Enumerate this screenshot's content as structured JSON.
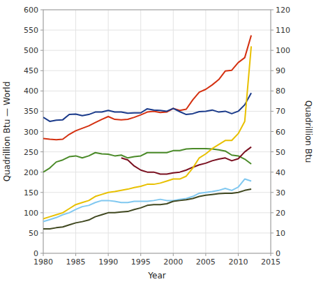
{
  "chart_data": {
    "type": "line",
    "xlabel": "Year",
    "ylabel": "Quadrillion Btu — World",
    "y2label": "Quadrillion Btu",
    "x": [
      1980,
      1981,
      1982,
      1983,
      1984,
      1985,
      1986,
      1987,
      1988,
      1989,
      1990,
      1991,
      1992,
      1993,
      1994,
      1995,
      1996,
      1997,
      1998,
      1999,
      2000,
      2001,
      2002,
      2003,
      2004,
      2005,
      2006,
      2007,
      2008,
      2009,
      2010,
      2011,
      2012
    ],
    "series": [
      {
        "color": "#d43010",
        "values": [
          283,
          281,
          280,
          281,
          293,
          302,
          308,
          314,
          322,
          330,
          337,
          330,
          329,
          330,
          335,
          341,
          348,
          350,
          347,
          348,
          357,
          352,
          355,
          378,
          397,
          404,
          415,
          428,
          449,
          451,
          470,
          482,
          537
        ]
      },
      {
        "color": "#1a3a8a",
        "values": [
          335,
          325,
          328,
          329,
          342,
          343,
          339,
          342,
          348,
          348,
          352,
          348,
          348,
          345,
          346,
          346,
          356,
          353,
          352,
          350,
          357,
          349,
          342,
          344,
          349,
          350,
          353,
          348,
          350,
          344,
          350,
          366,
          395
        ]
      },
      {
        "color": "#4a8a28",
        "values": [
          200,
          210,
          225,
          230,
          238,
          240,
          235,
          240,
          248,
          245,
          244,
          240,
          242,
          235,
          238,
          240,
          248,
          248,
          248,
          248,
          253,
          253,
          257,
          258,
          258,
          258,
          257,
          255,
          252,
          242,
          240,
          232,
          220
        ]
      },
      {
        "color": "#7a1020",
        "values": [
          null,
          null,
          null,
          null,
          null,
          null,
          null,
          null,
          null,
          null,
          null,
          null,
          235,
          230,
          215,
          205,
          200,
          200,
          195,
          195,
          198,
          200,
          205,
          212,
          218,
          222,
          228,
          232,
          235,
          228,
          233,
          250,
          262
        ]
      },
      {
        "color": "#e8c000",
        "values": [
          85,
          90,
          95,
          100,
          110,
          120,
          125,
          130,
          140,
          145,
          150,
          152,
          155,
          158,
          162,
          165,
          170,
          170,
          173,
          178,
          183,
          183,
          190,
          210,
          235,
          245,
          258,
          268,
          278,
          278,
          295,
          325,
          510
        ]
      },
      {
        "color": "#80c8f0",
        "values": [
          78,
          83,
          88,
          95,
          100,
          108,
          115,
          118,
          125,
          130,
          130,
          128,
          125,
          125,
          128,
          128,
          128,
          130,
          133,
          130,
          130,
          133,
          135,
          140,
          148,
          150,
          152,
          155,
          160,
          155,
          163,
          183,
          178
        ]
      },
      {
        "color": "#404820",
        "values": [
          60,
          60,
          63,
          65,
          70,
          75,
          78,
          82,
          90,
          95,
          100,
          100,
          102,
          103,
          108,
          112,
          118,
          120,
          120,
          122,
          128,
          130,
          132,
          135,
          140,
          143,
          145,
          147,
          148,
          148,
          150,
          155,
          158
        ]
      }
    ],
    "xlim": [
      1980,
      2015
    ],
    "xticks": [
      1980,
      1985,
      1990,
      1995,
      2000,
      2005,
      2010,
      2015
    ],
    "ylim": [
      0,
      600
    ],
    "yticks": [
      0,
      50,
      100,
      150,
      200,
      250,
      300,
      350,
      400,
      450,
      500,
      550,
      600
    ],
    "y2lim": [
      0,
      120
    ],
    "y2ticks": [
      0,
      10,
      20,
      30,
      40,
      50,
      60,
      70,
      80,
      90,
      100,
      110,
      120
    ],
    "grid": true
  }
}
